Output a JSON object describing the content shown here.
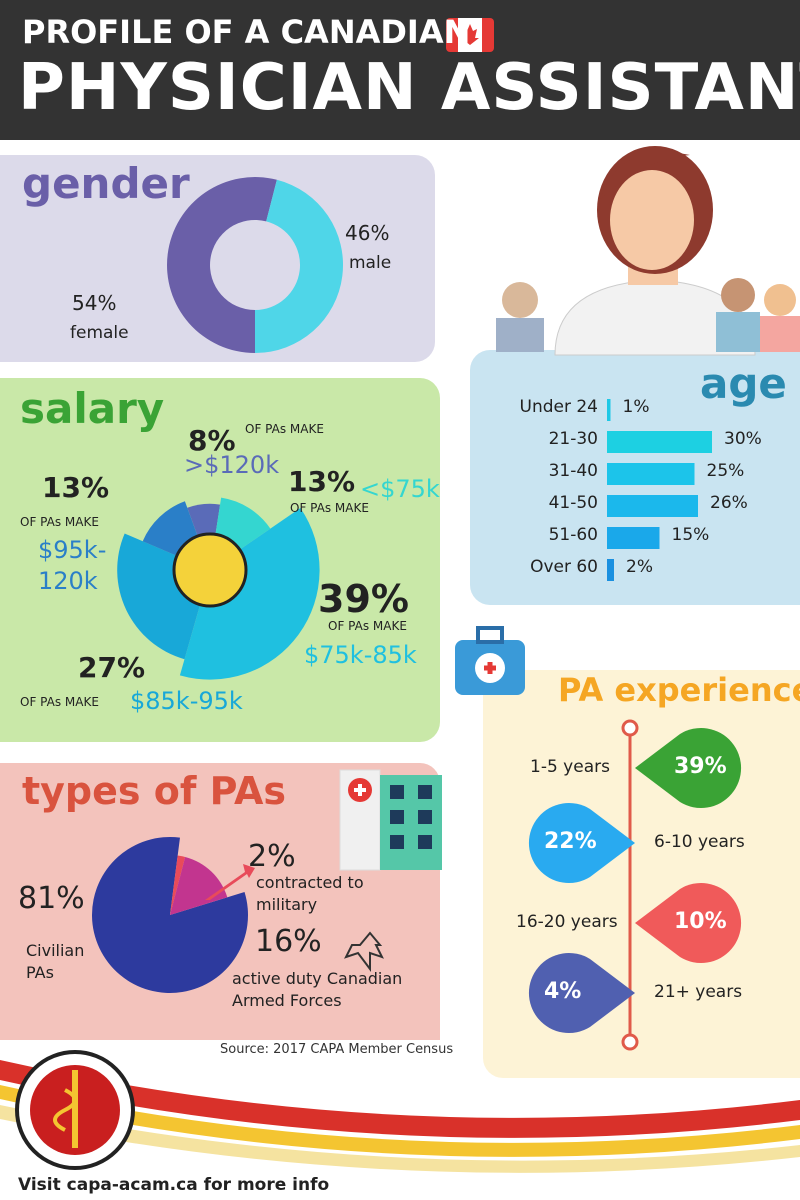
{
  "header": {
    "line1": "PROFILE OF A CANADIAN",
    "line2": "PHYSICIAN ASSISTANT"
  },
  "caption": "OF PAs MAKE",
  "source": "Source: 2017 CAPA Member Census",
  "footer": "Visit capa-acam.ca for more info",
  "chart_data": [
    {
      "type": "donut",
      "title": "gender",
      "categories": [
        "female",
        "male"
      ],
      "values": [
        54,
        46
      ],
      "value_labels": [
        "54%",
        "46%"
      ],
      "colors": [
        "#6a5fa8",
        "#4fd6e8"
      ]
    },
    {
      "type": "rose",
      "title": "salary",
      "categories": [
        ">$120k",
        "<$75k",
        "$75k-85k",
        "$85k-95k",
        "$95k-120k"
      ],
      "values": [
        8,
        13,
        39,
        27,
        13
      ],
      "value_labels": [
        "8%",
        "13%",
        "39%",
        "27%",
        "13%"
      ],
      "colors": [
        "#5a6bb8",
        "#34d6d0",
        "#1fc0e0",
        "#18a8d8",
        "#2a7fc8"
      ]
    },
    {
      "type": "bar",
      "title": "age",
      "categories": [
        "Under 24",
        "21-30",
        "31-40",
        "41-50",
        "51-60",
        "Over 60"
      ],
      "values": [
        1,
        30,
        25,
        26,
        15,
        2
      ],
      "value_labels": [
        "1%",
        "30%",
        "25%",
        "26%",
        "15%",
        "2%"
      ],
      "colors": [
        "#1ec8e6",
        "#1dd0e2",
        "#1cc4ea",
        "#1bb8ec",
        "#1aa8ea",
        "#1a90e0"
      ]
    },
    {
      "type": "pie",
      "title": "types of PAs",
      "categories": [
        "Civilian PAs",
        "contracted to military",
        "active duty Canadian Armed Forces"
      ],
      "values": [
        81,
        2,
        16
      ],
      "value_labels": [
        "81%",
        "2%",
        "16%"
      ],
      "colors": [
        "#2d3a9e",
        "#e84b5a",
        "#c2358f"
      ]
    },
    {
      "type": "drops",
      "title": "PA experience",
      "categories": [
        "1-5 years",
        "6-10 years",
        "16-20 years",
        "21+ years"
      ],
      "values": [
        39,
        22,
        10,
        4
      ],
      "value_labels": [
        "39%",
        "22%",
        "10%",
        "4%"
      ],
      "colors": [
        "#3aa335",
        "#29aaf0",
        "#f05a5a",
        "#5060b0"
      ]
    }
  ]
}
